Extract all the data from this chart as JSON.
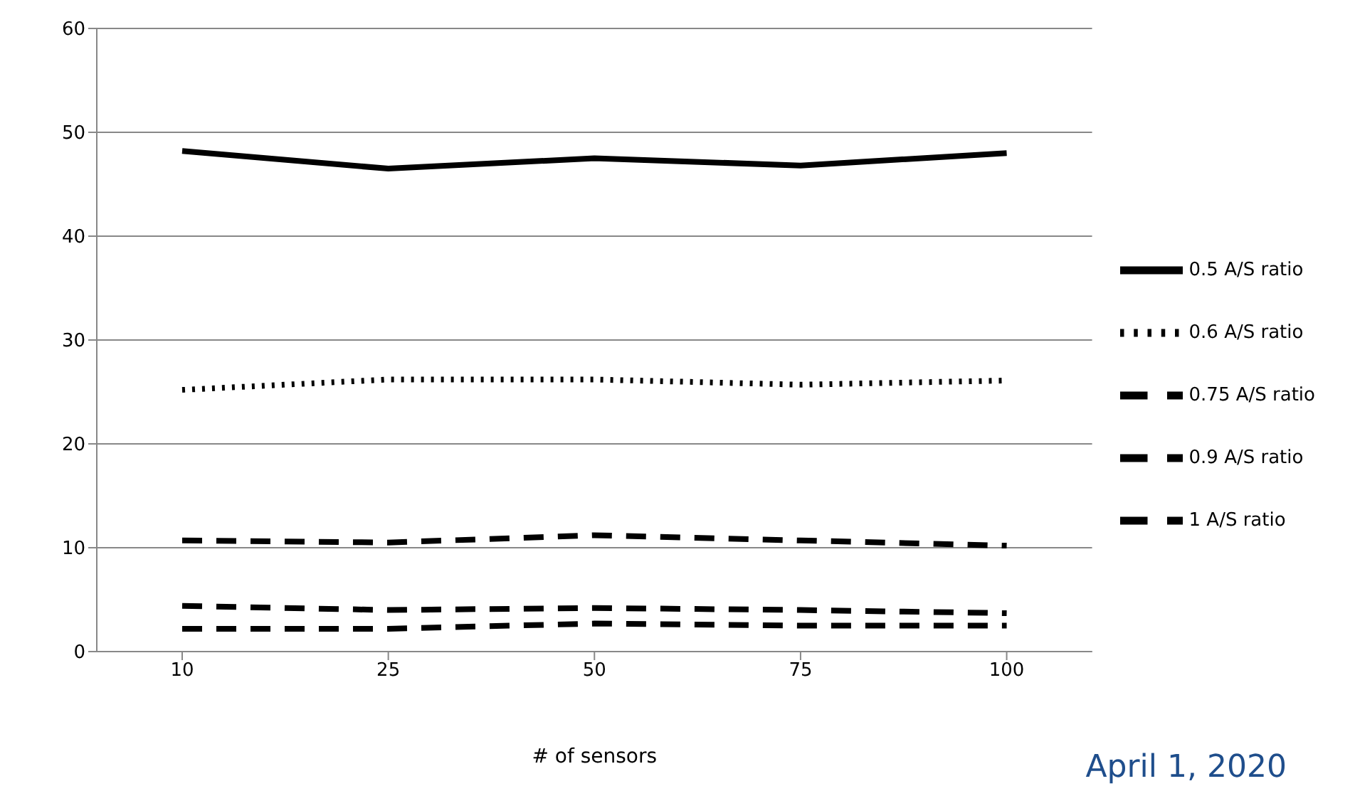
{
  "chart_data": {
    "type": "line",
    "xlabel": "# of sensors",
    "categories": [
      "10",
      "25",
      "50",
      "75",
      "100"
    ],
    "series": [
      {
        "name": "0.5 A/S ratio",
        "color": "#000000",
        "line_style": "solid",
        "values": [
          48.2,
          46.5,
          47.5,
          46.8,
          48.0
        ]
      },
      {
        "name": "0.6 A/S ratio",
        "color": "#000000",
        "line_style": "dotted",
        "values": [
          25.2,
          26.2,
          26.2,
          25.7,
          26.1
        ]
      },
      {
        "name": "0.75 A/S ratio",
        "color": "#000000",
        "line_style": "dashed",
        "values": [
          10.7,
          10.5,
          11.2,
          10.7,
          10.2
        ]
      },
      {
        "name": "0.9 A/S ratio",
        "color": "#000000",
        "line_style": "dashed",
        "values": [
          4.4,
          4.0,
          4.2,
          4.0,
          3.7
        ]
      },
      {
        "name": "1 A/S ratio",
        "color": "#000000",
        "line_style": "dashed",
        "values": [
          2.2,
          2.2,
          2.7,
          2.5,
          2.5
        ]
      }
    ],
    "ylim": [
      0,
      60
    ],
    "yticks": [
      0,
      10,
      20,
      30,
      40,
      50,
      60
    ],
    "grid": "y",
    "legend": "right",
    "marker": "none",
    "annotations": [
      "April 1, 2020"
    ]
  }
}
